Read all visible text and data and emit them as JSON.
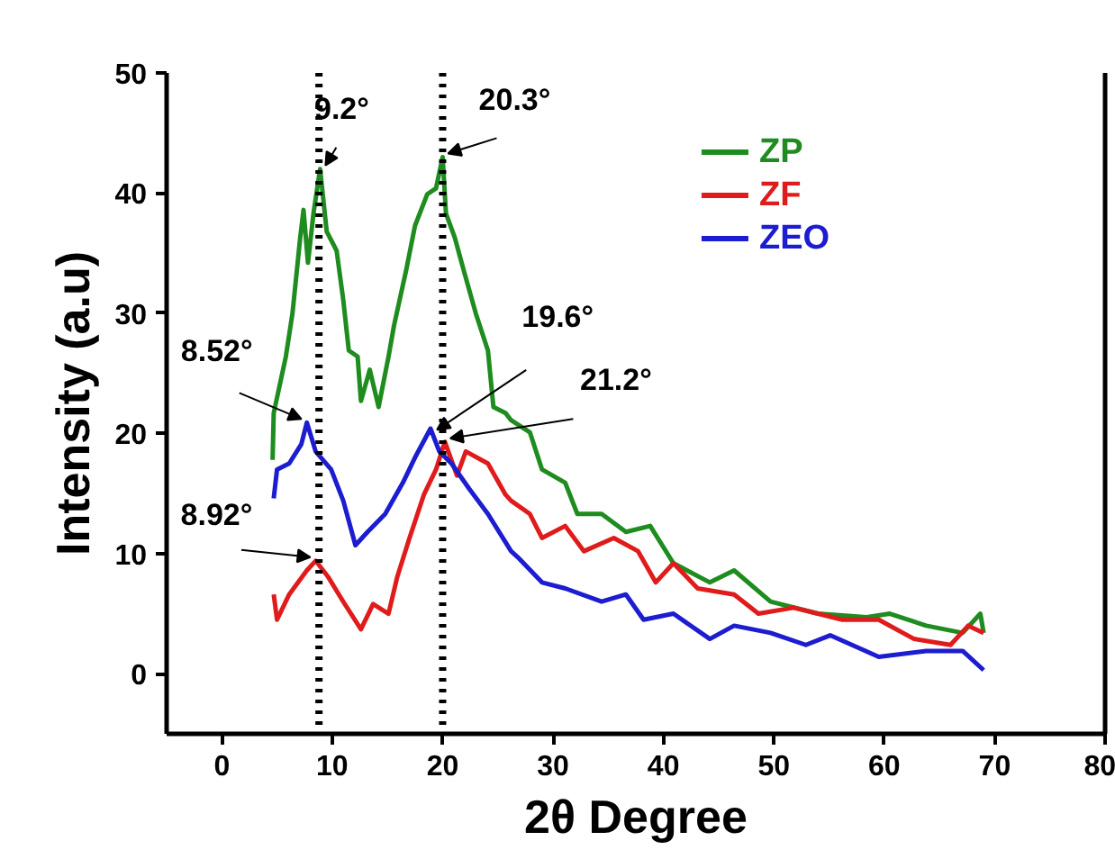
{
  "chart_data": {
    "type": "line",
    "xlabel": "2θ Degree",
    "ylabel": "Intensity (a.u)",
    "xlim": [
      -5,
      80
    ],
    "ylim": [
      -5,
      50
    ],
    "xticks": [
      0,
      10,
      20,
      30,
      40,
      50,
      60,
      70,
      80
    ],
    "yticks": [
      0,
      10,
      20,
      30,
      40,
      50
    ],
    "grid": false,
    "legend": "top right",
    "line_style": "solid",
    "marker": "none",
    "series": [
      {
        "name": "ZP",
        "color": "#1e8c1e",
        "x": [
          4.6,
          4.7,
          5.8,
          6.4,
          7.1,
          7.4,
          7.8,
          8.3,
          8.9,
          9.5,
          10.4,
          11.0,
          11.5,
          12.3,
          12.6,
          13.4,
          14.2,
          15.1,
          15.6,
          16.7,
          17.5,
          18.6,
          19.4,
          20.0,
          20.3,
          21.1,
          21.9,
          23.0,
          24.1,
          24.6,
          25.7,
          26.2,
          27.9,
          29.0,
          31.1,
          32.2,
          34.4,
          36.6,
          38.8,
          40.9,
          44.2,
          46.4,
          49.7,
          54.0,
          58.4,
          60.5,
          63.8,
          67.1,
          68.7,
          69.0
        ],
        "values": [
          17.8,
          21.7,
          26.4,
          30,
          36.3,
          38.6,
          34.2,
          38.3,
          42,
          36.8,
          35.2,
          31.1,
          26.9,
          26.4,
          22.7,
          25.3,
          22.2,
          26.4,
          29,
          33.6,
          37.3,
          39.9,
          40.4,
          43,
          38.3,
          36.3,
          33.6,
          30,
          26.9,
          22.2,
          21.7,
          21.1,
          20.1,
          17,
          15.9,
          13.3,
          13.3,
          11.8,
          12.3,
          9.2,
          7.6,
          8.6,
          6.0,
          5.0,
          4.7,
          5.0,
          4.0,
          3.4,
          5.0,
          3.4
        ]
      },
      {
        "name": "ZF",
        "color": "#e01b1b",
        "x": [
          4.7,
          5.0,
          6.1,
          7.7,
          8.5,
          9.6,
          11.0,
          12.6,
          13.7,
          15.1,
          15.9,
          17.0,
          18.3,
          19.4,
          20.2,
          21.3,
          22.1,
          24.1,
          25.7,
          26.2,
          27.9,
          29.0,
          31.1,
          32.8,
          35.5,
          37.7,
          39.3,
          40.9,
          43.1,
          46.4,
          48.6,
          51.8,
          56.2,
          59.5,
          62.7,
          66.0,
          67.6,
          69.0
        ],
        "values": [
          6.6,
          4.5,
          6.6,
          8.6,
          9.4,
          8.1,
          6.0,
          3.7,
          5.8,
          5.0,
          8.1,
          11.3,
          14.9,
          17,
          19.3,
          16.5,
          18.5,
          17.5,
          14.9,
          14.4,
          13.3,
          11.3,
          12.3,
          10.2,
          11.3,
          10.2,
          7.6,
          9.2,
          7.1,
          6.6,
          5.0,
          5.5,
          4.5,
          4.5,
          2.9,
          2.4,
          4.0,
          3.4
        ]
      },
      {
        "name": "ZEO",
        "color": "#1c1cd0",
        "x": [
          4.7,
          5.0,
          6.1,
          7.2,
          7.7,
          8.5,
          9.9,
          11.0,
          12.1,
          13.2,
          14.8,
          16.4,
          17.5,
          18.9,
          19.7,
          20.8,
          22.4,
          24.1,
          26.2,
          26.8,
          29.0,
          31.1,
          34.4,
          36.6,
          38.2,
          40.9,
          44.2,
          46.4,
          49.7,
          52.9,
          55.1,
          59.5,
          63.8,
          67.1,
          69.0
        ],
        "values": [
          14.6,
          17,
          17.5,
          19.1,
          20.9,
          18.5,
          17,
          14.4,
          10.7,
          11.8,
          13.3,
          15.9,
          18,
          20.4,
          18.5,
          17.5,
          15.4,
          13.3,
          10.2,
          9.7,
          7.6,
          7.1,
          6.0,
          6.6,
          4.5,
          5.0,
          2.9,
          4.0,
          3.4,
          2.4,
          3.2,
          1.4,
          1.9,
          1.9,
          0.3
        ]
      }
    ],
    "ref_lines": [
      {
        "axis": "x",
        "value": 8.8,
        "color": "#000000",
        "line_style": "dotted"
      },
      {
        "axis": "x",
        "value": 20.0,
        "color": "#000000",
        "line_style": "dotted"
      }
    ],
    "annotations": [
      {
        "text": "9.2°",
        "x": 8.9,
        "y": 42
      },
      {
        "text": "20.3°",
        "x": 20.0,
        "y": 43
      },
      {
        "text": "8.52°",
        "x": 7.7,
        "y": 20.9
      },
      {
        "text": "19.6°",
        "x": 19.0,
        "y": 20.0
      },
      {
        "text": "21.2°",
        "x": 20.2,
        "y": 19.3
      },
      {
        "text": "8.92°",
        "x": 8.5,
        "y": 9.4
      }
    ]
  }
}
